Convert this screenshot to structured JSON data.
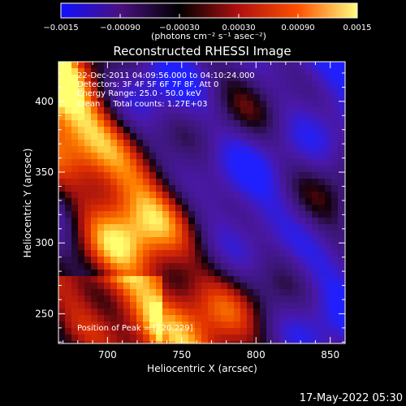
{
  "chart_data": {
    "type": "heatmap",
    "title": "Reconstructed RHESSI Image",
    "xlabel": "Heliocentric X (arcsec)",
    "ylabel": "Heliocentric Y (arcsec)",
    "xlim": [
      667,
      860
    ],
    "ylim": [
      229,
      428
    ],
    "xticks": [
      700,
      750,
      800,
      850
    ],
    "yticks": [
      250,
      300,
      350,
      400
    ],
    "colorbar": {
      "label": "(photons cm⁻² s⁻¹ asec⁻²)",
      "range": [
        -0.0015,
        0.0015
      ],
      "tick_labels": [
        "-0.0015",
        "-0.00090",
        "-0.00030",
        "0.00030",
        "0.00090",
        "0.0015"
      ],
      "colors": [
        "#1010ff",
        "#4a1080",
        "#000000",
        "#b01010",
        "#ff5000",
        "#ffff80"
      ]
    },
    "annotations": [
      "22-Dec-2011 04:09:56.000 to 04:10:24.000",
      "Detectors: 3F 4F 5F 6F 7F 8F, Att 0",
      "Energy Range: 25.0 - 50.0 keV",
      "Clean     Total counts: 1.27E+03"
    ],
    "peak_label": "Position of Peak = [720,229]",
    "peak": [
      720,
      229
    ],
    "grid": false
  },
  "footer": {
    "timestamp": "17-May-2022 05:30"
  }
}
